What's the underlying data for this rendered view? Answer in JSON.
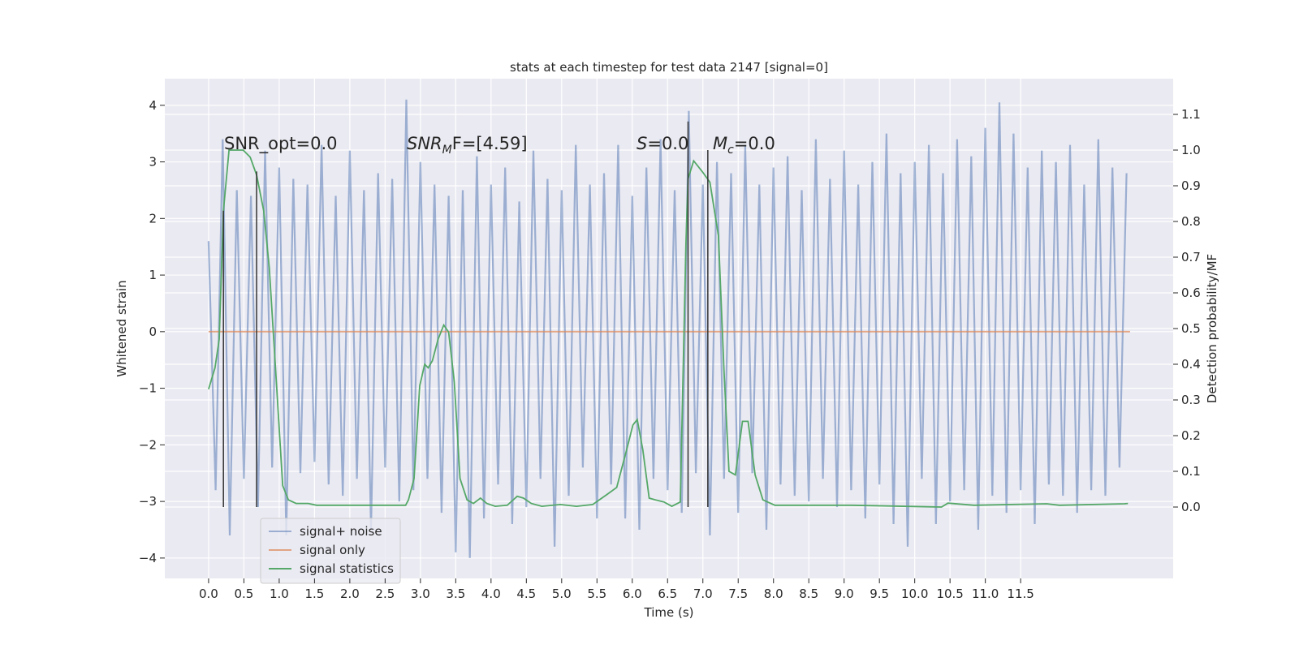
{
  "chart_data": {
    "type": "line",
    "title": "stats at each timestep for test data 2147 [signal=0]",
    "xlabel": "Time (s)",
    "ylabel": "Whitened strain",
    "y2label": "Detection probability/MF",
    "xlim": [
      -0.62,
      13.66
    ],
    "ylim": [
      -4.36,
      4.47
    ],
    "y2lim": [
      -0.2,
      1.2
    ],
    "xticks": [
      {
        "value": 0,
        "label": "0.0"
      },
      0.5,
      {
        "value": 1,
        "label": "1.0"
      },
      1.5,
      {
        "value": 2,
        "label": "2.0"
      },
      2.5,
      {
        "value": 3,
        "label": "3.0"
      },
      3.5,
      {
        "value": 4,
        "label": "4.0"
      },
      4.5,
      {
        "value": 5,
        "label": "5.0"
      },
      5.5,
      {
        "value": 6,
        "label": "6.0"
      },
      6.5,
      {
        "value": 7,
        "label": "7.0"
      },
      7.5,
      {
        "value": 8,
        "label": "8.0"
      },
      8.5,
      {
        "value": 9,
        "label": "9.0"
      },
      9.5,
      {
        "value": 10,
        "label": "10.0"
      },
      10.5,
      {
        "value": 11,
        "label": "11.0"
      },
      11.5
    ],
    "yticks": [
      {
        "value": -4,
        "label": "−4"
      },
      {
        "value": -3,
        "label": "−3"
      },
      {
        "value": -2,
        "label": "−2"
      },
      {
        "value": -1,
        "label": "−1"
      },
      0,
      1,
      2,
      3,
      4
    ],
    "y2ticks": [
      {
        "value": 0,
        "label": "0.0"
      },
      0.1,
      0.2,
      0.3,
      0.4,
      0.5,
      0.6,
      0.7,
      0.8,
      0.9,
      {
        "value": 1,
        "label": "1.0"
      },
      1.1
    ],
    "grid": true,
    "legend": "lower left",
    "series": [
      {
        "name": "signal+ noise",
        "color": "#4c72b0",
        "opacity": 0.5,
        "x": [
          0,
          0.1,
          0.2,
          0.3,
          0.4,
          0.5,
          0.6,
          0.7,
          0.8,
          0.9,
          1.0,
          1.1,
          1.2,
          1.3,
          1.4,
          1.5,
          1.6,
          1.7,
          1.8,
          1.9,
          2.0,
          2.1,
          2.2,
          2.3,
          2.4,
          2.5,
          2.6,
          2.7,
          2.8,
          2.9,
          3.0,
          3.1,
          3.2,
          3.3,
          3.4,
          3.5,
          3.6,
          3.7,
          3.8,
          3.9,
          4.0,
          4.1,
          4.2,
          4.3,
          4.4,
          4.5,
          4.6,
          4.7,
          4.8,
          4.9,
          5.0,
          5.1,
          5.2,
          5.3,
          5.4,
          5.5,
          5.6,
          5.7,
          5.8,
          5.9,
          6.0,
          6.1,
          6.2,
          6.3,
          6.4,
          6.5,
          6.6,
          6.7,
          6.8,
          6.9,
          7.0,
          7.1,
          7.2,
          7.3,
          7.4,
          7.5,
          7.6,
          7.7,
          7.8,
          7.9,
          8.0,
          8.1,
          8.2,
          8.3,
          8.4,
          8.5,
          8.6,
          8.7,
          8.8,
          8.9,
          9.0,
          9.1,
          9.2,
          9.3,
          9.4,
          9.5,
          9.6,
          9.7,
          9.8,
          9.9,
          10.0,
          10.1,
          10.2,
          10.3,
          10.4,
          10.5,
          10.6,
          10.7,
          10.8,
          10.9,
          11.0,
          11.1,
          11.2,
          11.3,
          11.4,
          11.5,
          11.6,
          11.7,
          11.8,
          11.9,
          12.0,
          12.1,
          12.2,
          12.3,
          12.4,
          12.5,
          12.6,
          12.7,
          12.8,
          12.9,
          13.0
        ],
        "values": [
          1.6,
          -2.8,
          3.4,
          -3.6,
          2.5,
          -2.6,
          2.4,
          -3.1,
          3.2,
          -2.4,
          2.9,
          -3.6,
          2.7,
          -2.5,
          2.6,
          -2.3,
          3.3,
          -2.7,
          2.4,
          -2.9,
          3.2,
          -2.6,
          2.5,
          -3.5,
          2.8,
          -2.4,
          2.7,
          -3.0,
          4.1,
          -2.8,
          3.0,
          -2.6,
          2.6,
          -3.2,
          2.4,
          -3.9,
          2.5,
          -4.0,
          3.1,
          -3.3,
          2.6,
          -2.7,
          2.9,
          -3.4,
          2.3,
          -3.1,
          3.2,
          -2.6,
          2.7,
          -3.8,
          2.5,
          -2.9,
          3.3,
          -2.4,
          2.6,
          -3.3,
          2.8,
          -2.7,
          3.3,
          -3.3,
          2.4,
          -3.5,
          2.9,
          -2.6,
          3.4,
          -2.8,
          2.5,
          -3.2,
          3.9,
          -2.5,
          2.6,
          -3.6,
          3.0,
          -2.6,
          2.8,
          -3.2,
          3.3,
          -2.5,
          2.6,
          -3.5,
          2.9,
          -2.7,
          3.1,
          -2.9,
          2.5,
          -3.0,
          3.4,
          -2.6,
          2.7,
          -3.1,
          3.2,
          -2.8,
          2.6,
          -3.3,
          3.0,
          -2.7,
          3.5,
          -3.4,
          2.8,
          -3.8,
          3.0,
          -2.6,
          3.3,
          -3.4,
          2.8,
          -3.0,
          3.4,
          -2.8,
          3.1,
          -3.5,
          3.6,
          -2.9,
          4.05,
          -3.2,
          3.5,
          -2.8,
          2.9,
          -3.4,
          3.2,
          -2.7,
          3.0,
          -2.9,
          3.3,
          -3.2,
          2.6,
          -2.8,
          3.4,
          -2.9,
          2.9,
          -2.4,
          2.8
        ]
      },
      {
        "name": "signal only",
        "color": "#dd8452",
        "opacity": 0.7,
        "x": [
          0,
          13.05
        ],
        "values": [
          0,
          0
        ]
      },
      {
        "name": "signal statistics",
        "color": "#55a868",
        "opacity": 1,
        "axis": "y2",
        "x": [
          0,
          0.09,
          0.15,
          0.21,
          0.29,
          0.38,
          0.49,
          0.59,
          0.68,
          0.78,
          0.86,
          0.95,
          1.05,
          1.13,
          1.24,
          1.41,
          1.53,
          2.79,
          2.83,
          2.91,
          2.99,
          3.06,
          3.11,
          3.17,
          3.25,
          3.33,
          3.4,
          3.48,
          3.56,
          3.66,
          3.75,
          3.85,
          3.94,
          4.06,
          4.23,
          4.37,
          4.46,
          4.57,
          4.72,
          4.98,
          5.21,
          5.44,
          5.64,
          5.78,
          5.92,
          6.01,
          6.07,
          6.15,
          6.24,
          6.33,
          6.45,
          6.56,
          6.68,
          6.76,
          6.79,
          6.87,
          6.99,
          7.1,
          7.22,
          7.3,
          7.37,
          7.46,
          7.56,
          7.64,
          7.74,
          7.85,
          8.02,
          9.11,
          10.38,
          10.47,
          10.84,
          11.87,
          12.05,
          12.97,
          13.02
        ],
        "values": [
          0.33,
          0.39,
          0.47,
          0.83,
          1.0,
          1.0,
          1.0,
          0.98,
          0.93,
          0.83,
          0.67,
          0.38,
          0.06,
          0.02,
          0.01,
          0.01,
          0.005,
          0.005,
          0.02,
          0.08,
          0.34,
          0.4,
          0.39,
          0.41,
          0.47,
          0.51,
          0.49,
          0.35,
          0.08,
          0.02,
          0.01,
          0.025,
          0.01,
          0.002,
          0.005,
          0.03,
          0.025,
          0.01,
          0.002,
          0.007,
          0.002,
          0.007,
          0.035,
          0.055,
          0.16,
          0.23,
          0.245,
          0.16,
          0.025,
          0.02,
          0.014,
          0.002,
          0.014,
          0.74,
          0.92,
          0.97,
          0.94,
          0.91,
          0.76,
          0.38,
          0.1,
          0.09,
          0.24,
          0.24,
          0.09,
          0.02,
          0.005,
          0.005,
          0,
          0.011,
          0.005,
          0.009,
          0.005,
          0.009,
          0.01
        ]
      }
    ],
    "vlines": {
      "color": "#333333",
      "axis": "y2",
      "x": [
        0.21,
        0.68,
        6.79,
        7.07
      ],
      "values": [
        0.83,
        0.94,
        1.08,
        1.0
      ]
    },
    "annotations": [
      [
        "SNR_opt=0.0"
      ],
      [
        "SNR",
        "M",
        "F=[4.59]"
      ],
      [
        "S",
        "=0.0"
      ],
      [
        "M",
        "c",
        "=0.0"
      ]
    ]
  }
}
